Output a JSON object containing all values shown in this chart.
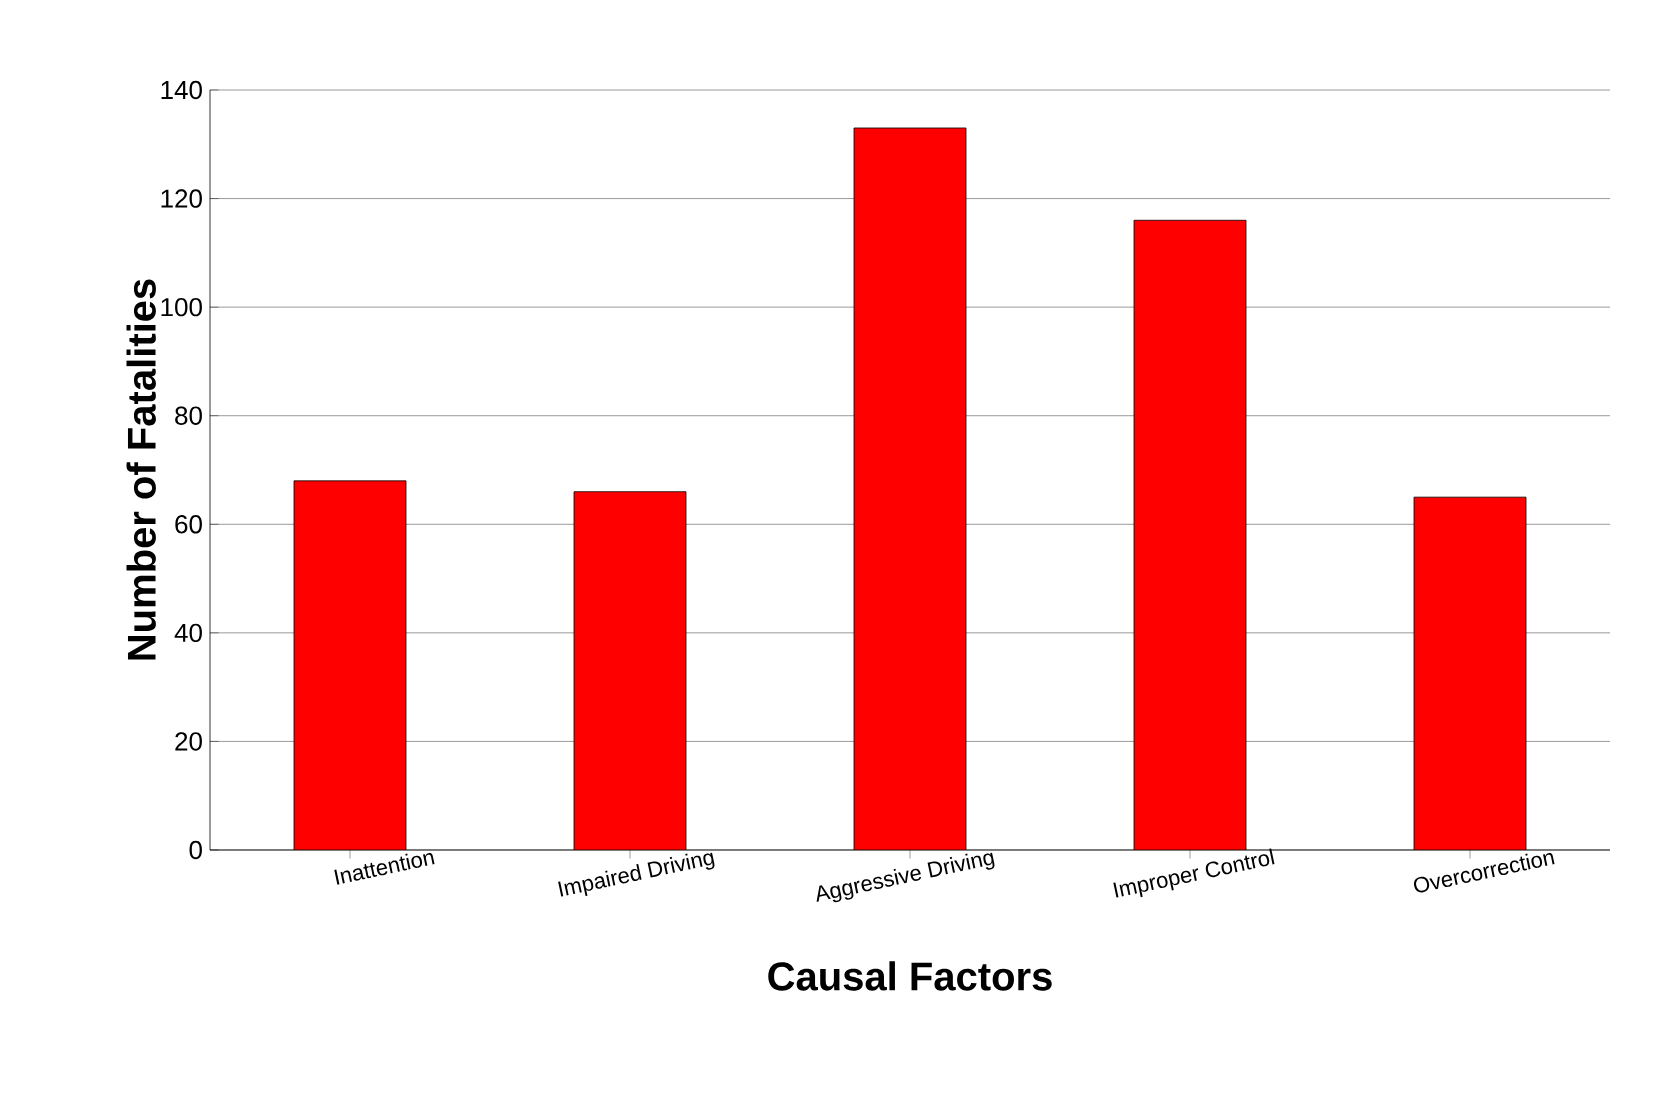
{
  "chart_data": {
    "type": "bar",
    "xlabel": "Causal Factors",
    "ylabel": "Number of Fatalities",
    "categories": [
      "Inattention",
      "Impaired Driving",
      "Aggressive Driving",
      "Improper Control",
      "Overcorrection"
    ],
    "values": [
      68,
      66,
      133,
      116,
      65
    ],
    "color": "#ff0000",
    "ylim": [
      0,
      140
    ],
    "yticks": [
      0,
      20,
      40,
      60,
      80,
      100,
      120,
      140
    ],
    "grid": "y"
  }
}
